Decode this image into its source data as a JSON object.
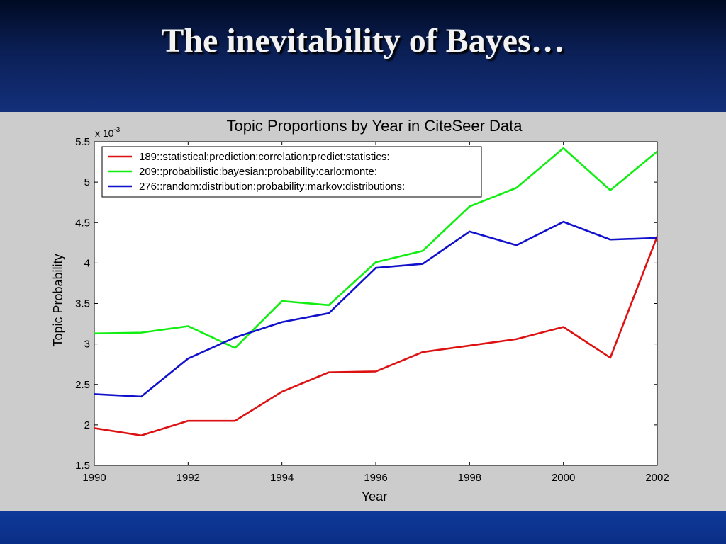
{
  "slide": {
    "title": "The inevitability of Bayes…",
    "colors": {
      "background": "#0a1a4c",
      "title_text": "#f2f2f2",
      "panel": "#cccccc"
    }
  },
  "chart_data": {
    "type": "line",
    "title": "Topic Proportions by Year in CiteSeer Data",
    "xlabel": "Year",
    "ylabel": "Topic Probability",
    "y_multiplier_label": "x 10",
    "y_multiplier_exponent": "-3",
    "xlim": [
      1990,
      2002
    ],
    "ylim": [
      1.5,
      5.5
    ],
    "x_ticks": [
      1990,
      1992,
      1994,
      1996,
      1998,
      2000,
      2002
    ],
    "x_tick_labels": [
      "1990",
      "1992",
      "1994",
      "1996",
      "1998",
      "2000",
      "2002"
    ],
    "y_ticks": [
      1.5,
      2,
      2.5,
      3,
      3.5,
      4,
      4.5,
      5,
      5.5
    ],
    "y_tick_labels": [
      "1.5",
      "2",
      "2.5",
      "3",
      "3.5",
      "4",
      "4.5",
      "5",
      "5.5"
    ],
    "grid": false,
    "legend_position": "top-left",
    "x": [
      1990,
      1991,
      1992,
      1993,
      1994,
      1995,
      1996,
      1997,
      1998,
      1999,
      2000,
      2001,
      2002
    ],
    "series": [
      {
        "name": "189::statistical:prediction:correlation:predict:statistics:",
        "color": "#dd1111",
        "values": [
          1.96,
          1.87,
          2.05,
          2.05,
          2.41,
          2.65,
          2.66,
          2.9,
          2.98,
          3.06,
          3.21,
          2.83,
          4.33
        ]
      },
      {
        "name": "209::probabilistic:bayesian:probability:carlo:monte:",
        "color": "#11ee11",
        "values": [
          3.13,
          3.14,
          3.22,
          2.95,
          3.53,
          3.48,
          4.01,
          4.15,
          4.7,
          4.93,
          5.42,
          4.9,
          5.38
        ]
      },
      {
        "name": "276::random:distribution:probability:markov:distributions:",
        "color": "#1111cc",
        "values": [
          2.38,
          2.35,
          2.82,
          3.08,
          3.27,
          3.38,
          3.94,
          3.99,
          4.39,
          4.22,
          4.51,
          4.29,
          4.31
        ]
      }
    ]
  }
}
